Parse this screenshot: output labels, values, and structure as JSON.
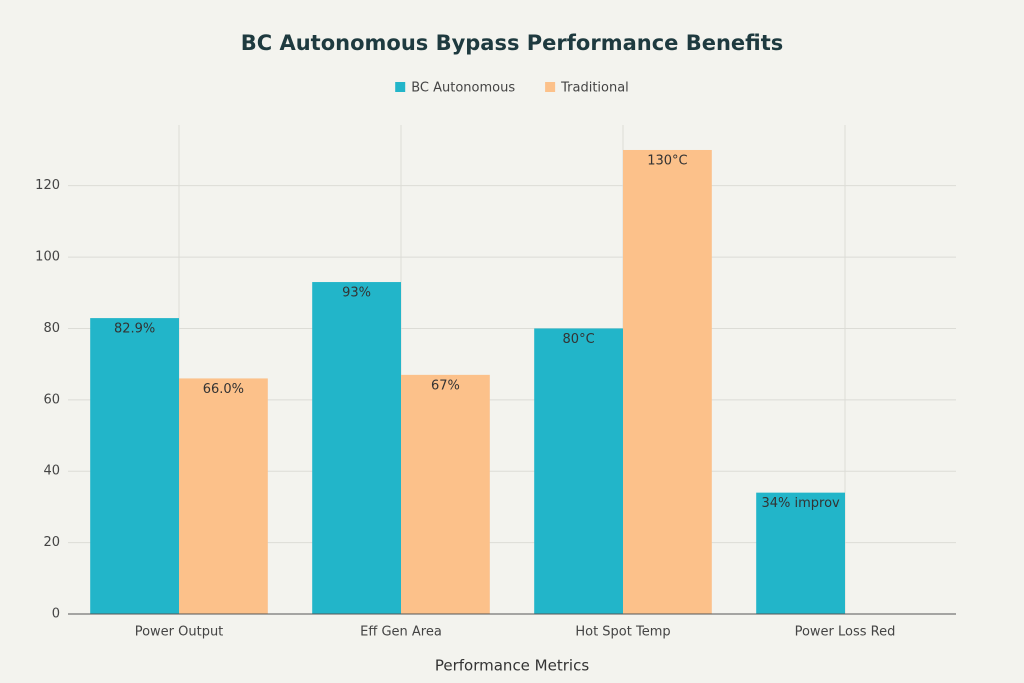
{
  "chart_data": {
    "type": "bar",
    "title": "BC Autonomous Bypass Performance Benefits",
    "x_label": "Performance Metrics",
    "categories": [
      "Power Output",
      "Eff Gen Area",
      "Hot Spot Temp",
      "Power Loss Red"
    ],
    "series": [
      {
        "name": "BC Autonomous",
        "color": "#22b5c9",
        "values": [
          82.9,
          93,
          80,
          34
        ],
        "value_labels": [
          "82.9%",
          "93%",
          "80°C",
          "34% improv"
        ]
      },
      {
        "name": "Traditional",
        "color": "#fcc18a",
        "values": [
          66.0,
          67,
          130,
          null
        ],
        "value_labels": [
          "66.0%",
          "67%",
          "130°C",
          null
        ]
      }
    ],
    "ylim": [
      0,
      137
    ],
    "yticks": [
      0,
      20,
      40,
      60,
      80,
      100,
      120
    ],
    "grid": true,
    "legend": "top"
  }
}
